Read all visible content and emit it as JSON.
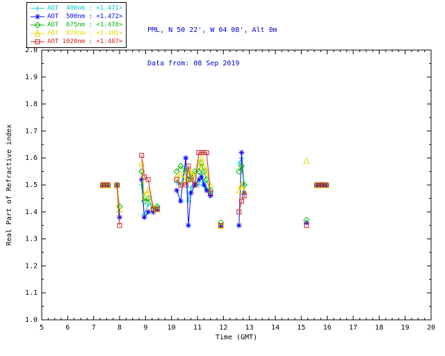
{
  "header": {
    "line1": "PML, N 50 22', W 04 08', Alt 0m",
    "line2": "Data from: 08 Sep 2019",
    "color": "#0000cd"
  },
  "legend": {
    "items": [
      {
        "label": "AOT  400nm",
        "value": "<1.471>",
        "color": "#00cdcd",
        "marker": "plus"
      },
      {
        "label": "AOT  500nm",
        "value": "<1.472>",
        "color": "#0000ff",
        "marker": "asterisk"
      },
      {
        "label": "AOT  675nm",
        "value": "<1.478>",
        "color": "#00b400",
        "marker": "diamond"
      },
      {
        "label": "AOT  870nm",
        "value": "<1.481>",
        "color": "#e3d800",
        "marker": "triangle"
      },
      {
        "label": "AOT 1020nm",
        "value": "<1.487>",
        "color": "#cc2222",
        "marker": "square"
      }
    ]
  },
  "chart_data": {
    "type": "scatter",
    "title": "",
    "xlabel": "Time (GMT)",
    "ylabel": "Real Part of Refractive index",
    "xlim": [
      5,
      20
    ],
    "ylim": [
      1.0,
      2.0
    ],
    "xticks": [
      5,
      6,
      7,
      8,
      9,
      10,
      11,
      12,
      13,
      14,
      15,
      16,
      17,
      18,
      19,
      20
    ],
    "yticks": [
      1.0,
      1.1,
      1.2,
      1.3,
      1.4,
      1.5,
      1.6,
      1.7,
      1.8,
      1.9,
      2.0
    ],
    "grid": false,
    "legend_position": "top-left",
    "x": [
      7.35,
      7.45,
      7.55,
      7.9,
      8.0,
      8.85,
      8.95,
      9.1,
      9.3,
      9.45,
      10.2,
      10.35,
      10.55,
      10.65,
      10.75,
      10.9,
      11.05,
      11.15,
      11.25,
      11.35,
      11.5,
      11.9,
      12.6,
      12.7,
      12.8,
      15.2,
      15.6,
      15.72,
      15.84,
      15.96
    ],
    "series": [
      {
        "name": "AOT 400nm",
        "mean": "<1.471>",
        "color": "#00cdcd",
        "marker": "plus",
        "values": [
          1.5,
          1.5,
          1.5,
          1.5,
          1.4,
          1.5,
          1.39,
          1.43,
          1.41,
          1.42,
          1.51,
          1.5,
          1.57,
          1.44,
          1.49,
          1.51,
          1.5,
          1.54,
          1.51,
          1.49,
          1.47,
          1.35,
          1.58,
          1.6,
          1.5,
          1.36,
          1.5,
          1.5,
          1.5,
          1.5
        ]
      },
      {
        "name": "AOT 500nm",
        "mean": "<1.472>",
        "color": "#0000ff",
        "marker": "asterisk",
        "values": [
          1.5,
          1.5,
          1.5,
          1.5,
          1.38,
          1.52,
          1.38,
          1.4,
          1.4,
          1.41,
          1.48,
          1.44,
          1.6,
          1.35,
          1.47,
          1.5,
          1.52,
          1.53,
          1.5,
          1.48,
          1.46,
          1.35,
          1.35,
          1.62,
          1.47,
          1.36,
          1.5,
          1.5,
          1.5,
          1.5
        ]
      },
      {
        "name": "AOT 675nm",
        "mean": "<1.478>",
        "color": "#00b400",
        "marker": "diamond",
        "values": [
          1.5,
          1.5,
          1.5,
          1.5,
          1.42,
          1.55,
          1.44,
          1.45,
          1.41,
          1.42,
          1.55,
          1.57,
          1.55,
          1.52,
          1.53,
          1.55,
          1.55,
          1.58,
          1.55,
          1.52,
          1.48,
          1.36,
          1.55,
          1.57,
          1.5,
          1.37,
          1.5,
          1.5,
          1.5,
          1.5
        ]
      },
      {
        "name": "AOT 870nm",
        "mean": "<1.481>",
        "color": "#e3d800",
        "marker": "triangle",
        "values": [
          1.5,
          1.5,
          1.5,
          1.5,
          1.41,
          1.58,
          1.46,
          1.48,
          1.42,
          1.41,
          1.53,
          1.54,
          1.52,
          1.55,
          1.55,
          1.53,
          1.58,
          1.6,
          1.57,
          1.55,
          1.5,
          1.35,
          1.48,
          1.5,
          1.48,
          1.59,
          1.5,
          1.5,
          1.5,
          1.5
        ]
      },
      {
        "name": "AOT 1020nm",
        "mean": "<1.487>",
        "color": "#cc2222",
        "marker": "square",
        "values": [
          1.5,
          1.5,
          1.5,
          1.5,
          1.35,
          1.61,
          1.53,
          1.52,
          1.41,
          1.41,
          1.52,
          1.5,
          1.5,
          1.57,
          1.52,
          1.5,
          1.62,
          1.62,
          1.62,
          1.62,
          1.47,
          1.35,
          1.4,
          1.44,
          1.46,
          1.35,
          1.5,
          1.5,
          1.5,
          1.5
        ]
      }
    ]
  }
}
